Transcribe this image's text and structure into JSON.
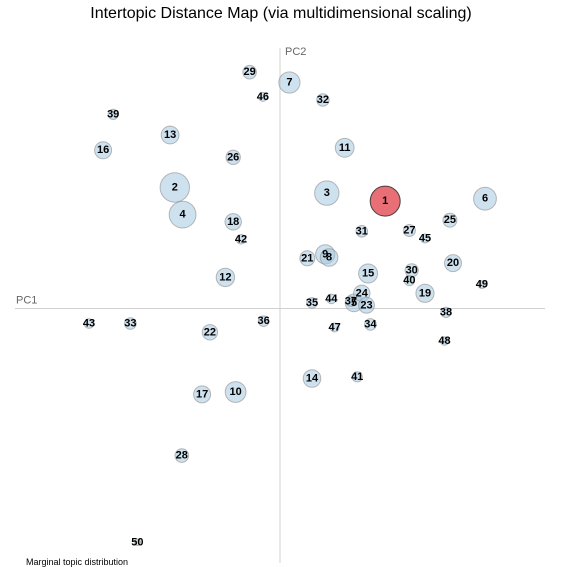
{
  "chart_data": {
    "type": "scatter",
    "title": "Intertopic Distance Map (via multidimensional scaling)",
    "xlabel": "PC1",
    "ylabel": "PC2",
    "xlim": [
      -0.34,
      0.34
    ],
    "ylim": [
      -0.32,
      0.34
    ],
    "grid": false,
    "colors": {
      "default": "#a6c8e0",
      "selected": "#e0464e",
      "axis": "#d0d0d0"
    },
    "selected_topic": "1",
    "topics": [
      {
        "label": "1",
        "x": 0.135,
        "y": 0.135,
        "size": 0.087
      },
      {
        "label": "2",
        "x": -0.135,
        "y": 0.152,
        "size": 0.084
      },
      {
        "label": "3",
        "x": 0.06,
        "y": 0.145,
        "size": 0.058
      },
      {
        "label": "4",
        "x": -0.125,
        "y": 0.118,
        "size": 0.07
      },
      {
        "label": "5",
        "x": 0.095,
        "y": 0.007,
        "size": 0.03
      },
      {
        "label": "6",
        "x": 0.263,
        "y": 0.138,
        "size": 0.05
      },
      {
        "label": "7",
        "x": 0.012,
        "y": 0.284,
        "size": 0.044
      },
      {
        "label": "8",
        "x": 0.063,
        "y": 0.064,
        "size": 0.03
      },
      {
        "label": "9",
        "x": 0.058,
        "y": 0.068,
        "size": 0.036
      },
      {
        "label": "10",
        "x": -0.057,
        "y": -0.105,
        "size": 0.042
      },
      {
        "label": "11",
        "x": 0.083,
        "y": 0.202,
        "size": 0.034
      },
      {
        "label": "12",
        "x": -0.07,
        "y": 0.039,
        "size": 0.033
      },
      {
        "label": "13",
        "x": -0.141,
        "y": 0.218,
        "size": 0.031
      },
      {
        "label": "14",
        "x": 0.041,
        "y": -0.088,
        "size": 0.03
      },
      {
        "label": "15",
        "x": 0.113,
        "y": 0.044,
        "size": 0.035
      },
      {
        "label": "16",
        "x": -0.227,
        "y": 0.199,
        "size": 0.028
      },
      {
        "label": "17",
        "x": -0.1,
        "y": -0.108,
        "size": 0.028
      },
      {
        "label": "18",
        "x": -0.06,
        "y": 0.109,
        "size": 0.026
      },
      {
        "label": "19",
        "x": 0.186,
        "y": 0.019,
        "size": 0.032
      },
      {
        "label": "20",
        "x": 0.222,
        "y": 0.057,
        "size": 0.028
      },
      {
        "label": "21",
        "x": 0.035,
        "y": 0.063,
        "size": 0.022
      },
      {
        "label": "22",
        "x": -0.09,
        "y": -0.03,
        "size": 0.023
      },
      {
        "label": "23",
        "x": 0.111,
        "y": 0.004,
        "size": 0.024
      },
      {
        "label": "24",
        "x": 0.105,
        "y": 0.019,
        "size": 0.026
      },
      {
        "label": "25",
        "x": 0.218,
        "y": 0.111,
        "size": 0.019
      },
      {
        "label": "26",
        "x": -0.06,
        "y": 0.19,
        "size": 0.02
      },
      {
        "label": "27",
        "x": 0.166,
        "y": 0.098,
        "size": 0.014
      },
      {
        "label": "28",
        "x": -0.126,
        "y": -0.185,
        "size": 0.018
      },
      {
        "label": "29",
        "x": -0.039,
        "y": 0.297,
        "size": 0.018
      },
      {
        "label": "30",
        "x": 0.169,
        "y": 0.048,
        "size": 0.017
      },
      {
        "label": "31",
        "x": 0.105,
        "y": 0.097,
        "size": 0.013
      },
      {
        "label": "32",
        "x": 0.055,
        "y": 0.262,
        "size": 0.015
      },
      {
        "label": "33",
        "x": -0.192,
        "y": -0.019,
        "size": 0.013
      },
      {
        "label": "34",
        "x": 0.116,
        "y": -0.02,
        "size": 0.013
      },
      {
        "label": "35",
        "x": 0.041,
        "y": 0.007,
        "size": 0.011
      },
      {
        "label": "36",
        "x": -0.021,
        "y": -0.016,
        "size": 0.011
      },
      {
        "label": "37",
        "x": 0.091,
        "y": 0.009,
        "size": 0.01
      },
      {
        "label": "38",
        "x": 0.213,
        "y": -0.005,
        "size": 0.01
      },
      {
        "label": "39",
        "x": -0.214,
        "y": 0.244,
        "size": 0.01
      },
      {
        "label": "40",
        "x": 0.166,
        "y": 0.035,
        "size": 0.01
      },
      {
        "label": "41",
        "x": 0.099,
        "y": -0.086,
        "size": 0.01
      },
      {
        "label": "42",
        "x": -0.05,
        "y": 0.087,
        "size": 0.009
      },
      {
        "label": "43",
        "x": -0.245,
        "y": -0.019,
        "size": 0.009
      },
      {
        "label": "44",
        "x": 0.066,
        "y": 0.012,
        "size": 0.009
      },
      {
        "label": "45",
        "x": 0.186,
        "y": 0.088,
        "size": 0.008
      },
      {
        "label": "46",
        "x": -0.022,
        "y": 0.266,
        "size": 0.008
      },
      {
        "label": "47",
        "x": 0.07,
        "y": -0.024,
        "size": 0.008
      },
      {
        "label": "48",
        "x": 0.211,
        "y": -0.041,
        "size": 0.007
      },
      {
        "label": "49",
        "x": 0.259,
        "y": 0.03,
        "size": 0.006
      },
      {
        "label": "50",
        "x": -0.183,
        "y": -0.294,
        "size": 0.004
      }
    ]
  },
  "footer": {
    "note": "Marginal topic distribution"
  }
}
